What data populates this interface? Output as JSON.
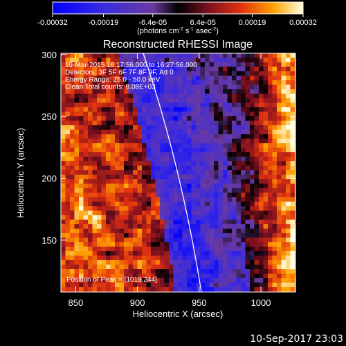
{
  "chart_data": {
    "type": "heatmap",
    "title": "Reconstructed RHESSI Image",
    "xlabel": "Heliocentric X (arcsec)",
    "ylabel": "Heliocentric Y (arcsec)",
    "xlim": [
      838,
      1028
    ],
    "ylim": [
      108,
      301
    ],
    "x_ticks": [
      850,
      900,
      950,
      1000
    ],
    "y_ticks": [
      150,
      200,
      250,
      300
    ],
    "colorbar": {
      "ticks": [
        "-0.00032",
        "-0.00019",
        "-6.4e-05",
        "6.4e-05",
        "0.00019",
        "0.00032"
      ],
      "tick_values": [
        -0.00032,
        -0.00019,
        -6.4e-05,
        6.4e-05,
        0.00019,
        0.00032
      ],
      "range": [
        -0.00032,
        0.00032
      ],
      "unit_text": "(photons cm",
      "unit_exp1": "-2",
      "unit_mid": " s",
      "unit_exp2": "-1",
      "unit_mid2": " asec",
      "unit_exp3": "-2",
      "unit_close": ")"
    },
    "annotations": [
      "19-Mar-2015 16:17:56.000 to 16:27:56.000",
      "Detectors: 3F 5F 6F 7F 8F 9F, Att 0",
      "Energy Range: 25.0 - 50.0 keV",
      "Clean     Total counts: 8.08E+03"
    ],
    "peak_label": "Position of Peak = [1019,244]",
    "peak": [
      1019,
      244
    ],
    "grid": false
  },
  "timestamp": "10-Sep-2017 23:03"
}
